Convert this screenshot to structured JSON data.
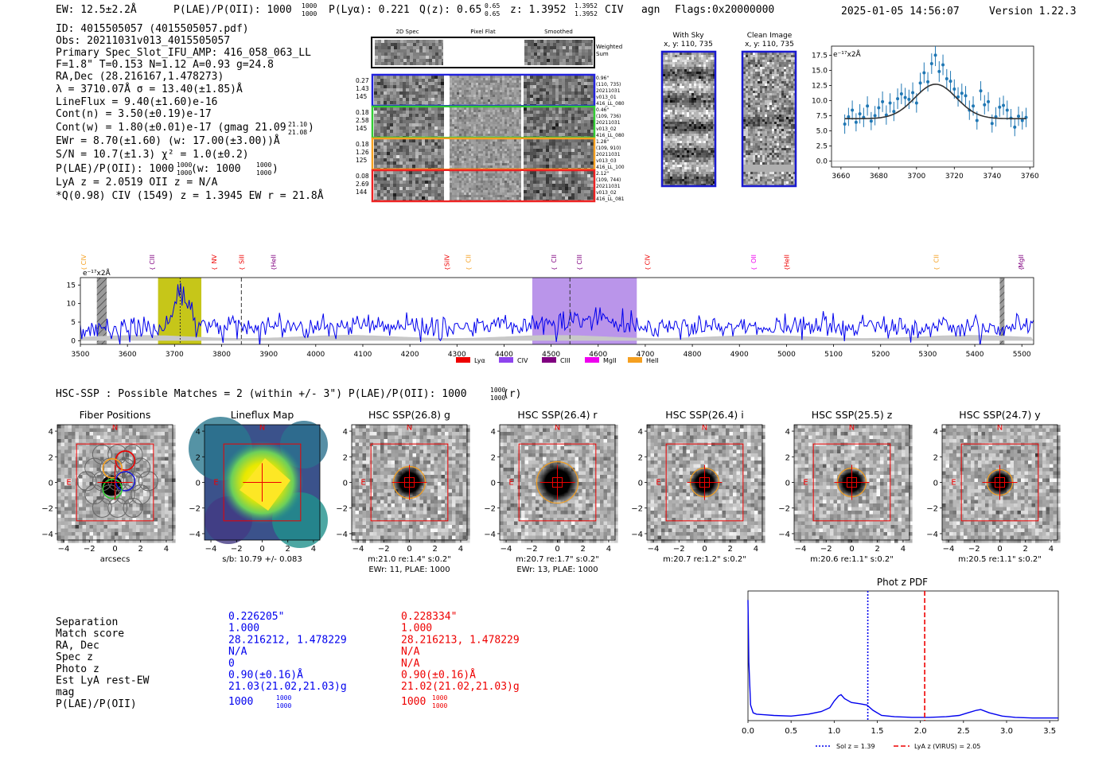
{
  "header": {
    "ew": "EW: 12.5±2.2Å",
    "plae_label": "P(LAE)/P(OII): 1000",
    "plae_sup": "1000",
    "plae_sub": "1000",
    "plya": "P(Lyα): 0.221",
    "qz_label": "Q(z): 0.65",
    "qz_sup": "0.65",
    "qz_sub": "0.65",
    "z_label": "z: 1.3952",
    "z_sup": "1.3952",
    "z_sub": "1.3952",
    "line_type": "CIV",
    "agn": "agn",
    "flags": "Flags:0x20000000",
    "timestamp": "2025-01-05 14:56:07",
    "version": "Version 1.22.3"
  },
  "info": {
    "id": "ID: 4015505057 (4015505057.pdf)",
    "obs": "Obs: 20211031v013_4015505057",
    "primary": "Primary Spec_Slot_IFU_AMP: 416_058_063_LL",
    "fit": "F=1.8\"  T=0.153  N=1.12  A=0.93  g=24.8",
    "radec": "RA,Dec (28.216167,1.478273)",
    "lambda": "λ = 3710.07Å   σ = 13.40(±1.85)Å",
    "lineflux": "LineFlux = 9.40(±1.60)e-16",
    "contn": "Cont(n) = 3.50(±0.19)e-17",
    "contw": "Cont(w) = 1.80(±0.01)e-17 (gmag 21.09",
    "contw_sup": "21.10",
    "contw_sub": "21.08",
    "contw_end": ")",
    "ewr": "EWr = 8.70(±1.60)  (w: 17.00(±3.00))Å",
    "sn": "S/N = 10.7(±1.3)   χ² = 1.0(±0.2)",
    "plae_main": "P(LAE)/P(OII): 1000",
    "plae_sup": "1000",
    "plae_sub": "1000",
    "plae_w": " (w: 1000",
    "plae_w_sup": "1000",
    "plae_w_sub": "1000",
    "plae_end": ")",
    "lya": "LyA z = 2.0519   OII z = N/A",
    "q": "*Q(0.98) CIV (1549) z = 1.3945   EW r = 21.8Å"
  },
  "spec2d": {
    "col_labels": [
      "2D Spec",
      "Pixel Flat",
      "Smoothed"
    ],
    "weighted_label_1": "Weighted",
    "weighted_label_2": "Sum",
    "rows": [
      {
        "left": [
          "0.27",
          "1.43",
          "145"
        ],
        "right": [
          "0.96\"",
          "(110, 735)",
          "20211031",
          "v013_01",
          "416_LL_080"
        ],
        "color": "#2222dd"
      },
      {
        "left": [
          "0.18",
          "2.58",
          "145"
        ],
        "right": [
          "0.46\"",
          "(109, 736)",
          "20211031",
          "v013_02",
          "416_LL_080"
        ],
        "color": "#33cc33"
      },
      {
        "left": [
          "0.18",
          "1.26",
          "125"
        ],
        "right": [
          "1.28\"",
          "(109, 910)",
          "20211031",
          "v013_03",
          "416_LL_100"
        ],
        "color": "#f5a020"
      },
      {
        "left": [
          "0.08",
          "2.69",
          "144"
        ],
        "right": [
          "2.12\"",
          "(109, 744)",
          "20211031",
          "v013_02",
          "416_LL_081"
        ],
        "color": "#ee2222"
      }
    ]
  },
  "cutouts": {
    "with_sky": "With Sky",
    "with_sky_xy": "x, y: 110, 735",
    "clean": "Clean Image",
    "clean_xy": "x, y: 110, 735"
  },
  "chart_data": [
    {
      "id": "line_fit",
      "type": "scatter",
      "title": "",
      "unit_label": "e⁻¹⁷x2Å",
      "xlim": [
        3655,
        3762
      ],
      "ylim": [
        -1,
        19
      ],
      "xticks": [
        3660,
        3680,
        3700,
        3720,
        3740,
        3760
      ],
      "yticks": [
        0.0,
        2.5,
        5.0,
        7.5,
        10.0,
        12.5,
        15.0,
        17.5
      ],
      "ytick_labels": [
        "0.0",
        "2.5",
        "5.0",
        "7.5",
        "10.0",
        "12.5",
        "15.0",
        "17.5"
      ],
      "fit": {
        "amplitude": 5.7,
        "center": 3710.1,
        "sigma": 11.0,
        "continuum": 7.0
      },
      "x": [
        3662,
        3664,
        3666,
        3668,
        3670,
        3672,
        3674,
        3676,
        3678,
        3680,
        3682,
        3684,
        3686,
        3688,
        3690,
        3692,
        3694,
        3696,
        3698,
        3700,
        3702,
        3704,
        3706,
        3708,
        3710,
        3712,
        3714,
        3716,
        3718,
        3720,
        3722,
        3724,
        3726,
        3728,
        3730,
        3732,
        3734,
        3736,
        3738,
        3740,
        3742,
        3744,
        3746,
        3748,
        3750,
        3752,
        3754,
        3756,
        3758
      ],
      "y": [
        6.1,
        7.3,
        8.4,
        6.4,
        7.8,
        7.2,
        9.1,
        6.6,
        7.5,
        8.8,
        9.8,
        7.6,
        9.6,
        8.2,
        10.3,
        11.1,
        10.5,
        10.2,
        11.3,
        9.6,
        12.9,
        14.6,
        13.1,
        16.1,
        17.5,
        14.8,
        15.9,
        13.6,
        13.2,
        11.9,
        10.6,
        11.2,
        10.8,
        8.4,
        9.1,
        6.7,
        11.6,
        9.3,
        9.8,
        6.2,
        7.3,
        8.9,
        9.2,
        8.4,
        7.1,
        5.6,
        7.4,
        6.7,
        7.2
      ],
      "err": [
        1.6,
        1.5,
        1.6,
        1.5,
        1.6,
        1.6,
        1.6,
        1.5,
        1.6,
        1.6,
        1.7,
        1.6,
        1.6,
        1.6,
        1.7,
        1.7,
        1.6,
        1.6,
        1.7,
        1.6,
        1.7,
        1.7,
        1.6,
        1.7,
        1.8,
        1.7,
        1.7,
        1.6,
        1.7,
        1.6,
        1.6,
        1.6,
        1.6,
        1.6,
        1.6,
        1.5,
        1.6,
        1.6,
        1.6,
        1.5,
        1.6,
        1.6,
        1.6,
        1.6,
        1.5,
        1.5,
        1.6,
        1.5,
        1.6
      ]
    },
    {
      "id": "full_spectrum",
      "type": "line",
      "unit_label": "e⁻¹⁷x2Å",
      "xlim": [
        3500,
        5525
      ],
      "ylim": [
        -1,
        17
      ],
      "xticks": [
        3500,
        3600,
        3700,
        3800,
        3900,
        4000,
        4100,
        4200,
        4300,
        4400,
        4500,
        4600,
        4700,
        4800,
        4900,
        5000,
        5100,
        5200,
        5300,
        5400,
        5500
      ],
      "yticks": [
        0,
        5,
        10,
        15
      ],
      "series": [
        {
          "name": "flux",
          "generator": {
            "continuum": 3.6,
            "noise": 1.6,
            "step": 3,
            "peaks": [
              {
                "center": 3712,
                "amp": 9.5,
                "sigma": 14
              },
              {
                "center": 4560,
                "amp": 2.2,
                "sigma": 60
              }
            ]
          }
        }
      ],
      "bands": [
        {
          "x0": 3665,
          "x1": 3757,
          "color": "#c0c000",
          "name": "Lyα window"
        },
        {
          "x0": 4460,
          "x1": 4682,
          "color": "#b38ae8",
          "name": "CIV window"
        }
      ],
      "hatched": [
        {
          "x0": 3535,
          "x1": 3556
        },
        {
          "x0": 5453,
          "x1": 5463
        }
      ],
      "vlines": [
        {
          "x": 3712,
          "style": "dotted"
        },
        {
          "x": 3842,
          "style": "dashed"
        },
        {
          "x": 4540,
          "style": "dashed"
        }
      ],
      "line_labels": [
        {
          "x": 3507,
          "label": "CIV",
          "color": "#f5a020"
        },
        {
          "x": 3652,
          "label": "CIII",
          "color": "#800080"
        },
        {
          "x": 3784,
          "label": "NV",
          "color": "#ee0000"
        },
        {
          "x": 3842,
          "label": "SiII",
          "color": "#ee0000"
        },
        {
          "x": 3910,
          "label": "HeII",
          "color": "#800080"
        },
        {
          "x": 4278,
          "label": "SiIV",
          "color": "#ee0000"
        },
        {
          "x": 4324,
          "label": "CII",
          "color": "#f5a020"
        },
        {
          "x": 4506,
          "label": "CII",
          "color": "#800080"
        },
        {
          "x": 4560,
          "label": "CIII",
          "color": "#800080"
        },
        {
          "x": 4704,
          "label": "CIV",
          "color": "#ee0000"
        },
        {
          "x": 4930,
          "label": "OII",
          "color": "#ee00ee"
        },
        {
          "x": 5000,
          "label": "HeII",
          "color": "#ee0000"
        },
        {
          "x": 5318,
          "label": "CII",
          "color": "#f5a020"
        },
        {
          "x": 5498,
          "label": "MgII",
          "color": "#800080"
        }
      ],
      "legend": [
        {
          "label": "Lyα",
          "color": "#ee0000"
        },
        {
          "label": "CIV",
          "color": "#8e44ee"
        },
        {
          "label": "CIII",
          "color": "#800080"
        },
        {
          "label": "MgII",
          "color": "#ee00ee"
        },
        {
          "label": "HeII",
          "color": "#f5a020"
        }
      ]
    },
    {
      "id": "photz_pdf",
      "type": "line",
      "title": "Phot z PDF",
      "xlim": [
        0.0,
        3.6
      ],
      "ylim": [
        0,
        1
      ],
      "xticks": [
        0.0,
        0.5,
        1.0,
        1.5,
        2.0,
        2.5,
        3.0,
        3.5
      ],
      "xtick_labels": [
        "0.0",
        "0.5",
        "1.0",
        "1.5",
        "2.0",
        "2.5",
        "3.0",
        "3.5"
      ],
      "x": [
        0.0,
        0.01,
        0.03,
        0.06,
        0.1,
        0.2,
        0.3,
        0.5,
        0.7,
        0.85,
        0.95,
        1.0,
        1.05,
        1.08,
        1.12,
        1.2,
        1.3,
        1.38,
        1.45,
        1.55,
        1.7,
        1.9,
        2.1,
        2.3,
        2.45,
        2.55,
        2.65,
        2.7,
        2.8,
        2.95,
        3.1,
        3.3,
        3.5,
        3.6
      ],
      "y": [
        0.93,
        0.45,
        0.12,
        0.06,
        0.05,
        0.045,
        0.04,
        0.035,
        0.05,
        0.07,
        0.1,
        0.15,
        0.19,
        0.2,
        0.17,
        0.14,
        0.13,
        0.12,
        0.08,
        0.04,
        0.03,
        0.025,
        0.025,
        0.03,
        0.04,
        0.06,
        0.08,
        0.085,
        0.06,
        0.035,
        0.025,
        0.02,
        0.02,
        0.02
      ],
      "vlines": [
        {
          "x": 1.39,
          "style": "dotted",
          "color": "#0000ee",
          "label": "Sol z = 1.39"
        },
        {
          "x": 2.05,
          "style": "dashed",
          "color": "#ee0000",
          "label": "LyA z (VIRUS) = 2.05"
        }
      ]
    }
  ],
  "hsc": {
    "header": "HSC-SSP : Possible Matches = 2 (within +/- 3\")  P(LAE)/P(OII): 1000",
    "header_sup": "1000",
    "header_sub": "1000",
    "header_end": " (r)",
    "panels": [
      {
        "title": "Fiber Positions",
        "kind": "fiber",
        "cap1": "arcsecs",
        "cap2": ""
      },
      {
        "title": "Lineflux Map",
        "kind": "lineflux",
        "cap1": "s/b: 10.79 +/- 0.083",
        "cap2": ""
      },
      {
        "title": "HSC SSP(26.8) g",
        "kind": "hsc",
        "cap1": "m:21.0  re:1.4\"  s:0.2\"",
        "cap2": "EWr: 11, PLAE: 1000"
      },
      {
        "title": "HSC SSP(26.4) r",
        "kind": "hsc",
        "cap1": "m:20.7  re:1.7\"  s:0.2\"",
        "cap2": "EWr: 13, PLAE: 1000"
      },
      {
        "title": "HSC SSP(26.4) i",
        "kind": "hsc",
        "cap1": "m:20.7  re:1.2\"  s:0.2\"",
        "cap2": ""
      },
      {
        "title": "HSC SSP(25.5) z",
        "kind": "hsc",
        "cap1": "m:20.6  re:1.1\"  s:0.2\"",
        "cap2": ""
      },
      {
        "title": "HSC SSP(24.7) y",
        "kind": "hsc",
        "cap1": "m:20.5  re:1.1\"  s:0.2\"",
        "cap2": ""
      }
    ],
    "axis_ticks": [
      "−4",
      "−2",
      "0",
      "2",
      "4"
    ],
    "axis_ticks_y": [
      "4",
      "2",
      "0",
      "−2",
      "−4"
    ],
    "n_label": "N",
    "e_label": "E"
  },
  "matches": {
    "labels": [
      "Separation",
      "Match score",
      "RA, Dec",
      "Spec z",
      "Photo z",
      "Est LyA rest-EW",
      "mag",
      "P(LAE)/P(OII)"
    ],
    "blue": [
      "0.226205\"",
      "1.000",
      "28.216212, 1.478229",
      "N/A",
      "0",
      "0.90(±0.16)Å",
      "21.03(21.02,21.03)g",
      "1000"
    ],
    "blue_sup": "1000",
    "blue_sub": "1000",
    "red": [
      "0.228334\"",
      "1.000",
      "28.216213, 1.478229",
      "N/A",
      "N/A",
      "0.90(±0.16)Å",
      "21.02(21.02,21.03)g",
      "1000"
    ],
    "red_sup": "1000",
    "red_sub": "1000"
  }
}
